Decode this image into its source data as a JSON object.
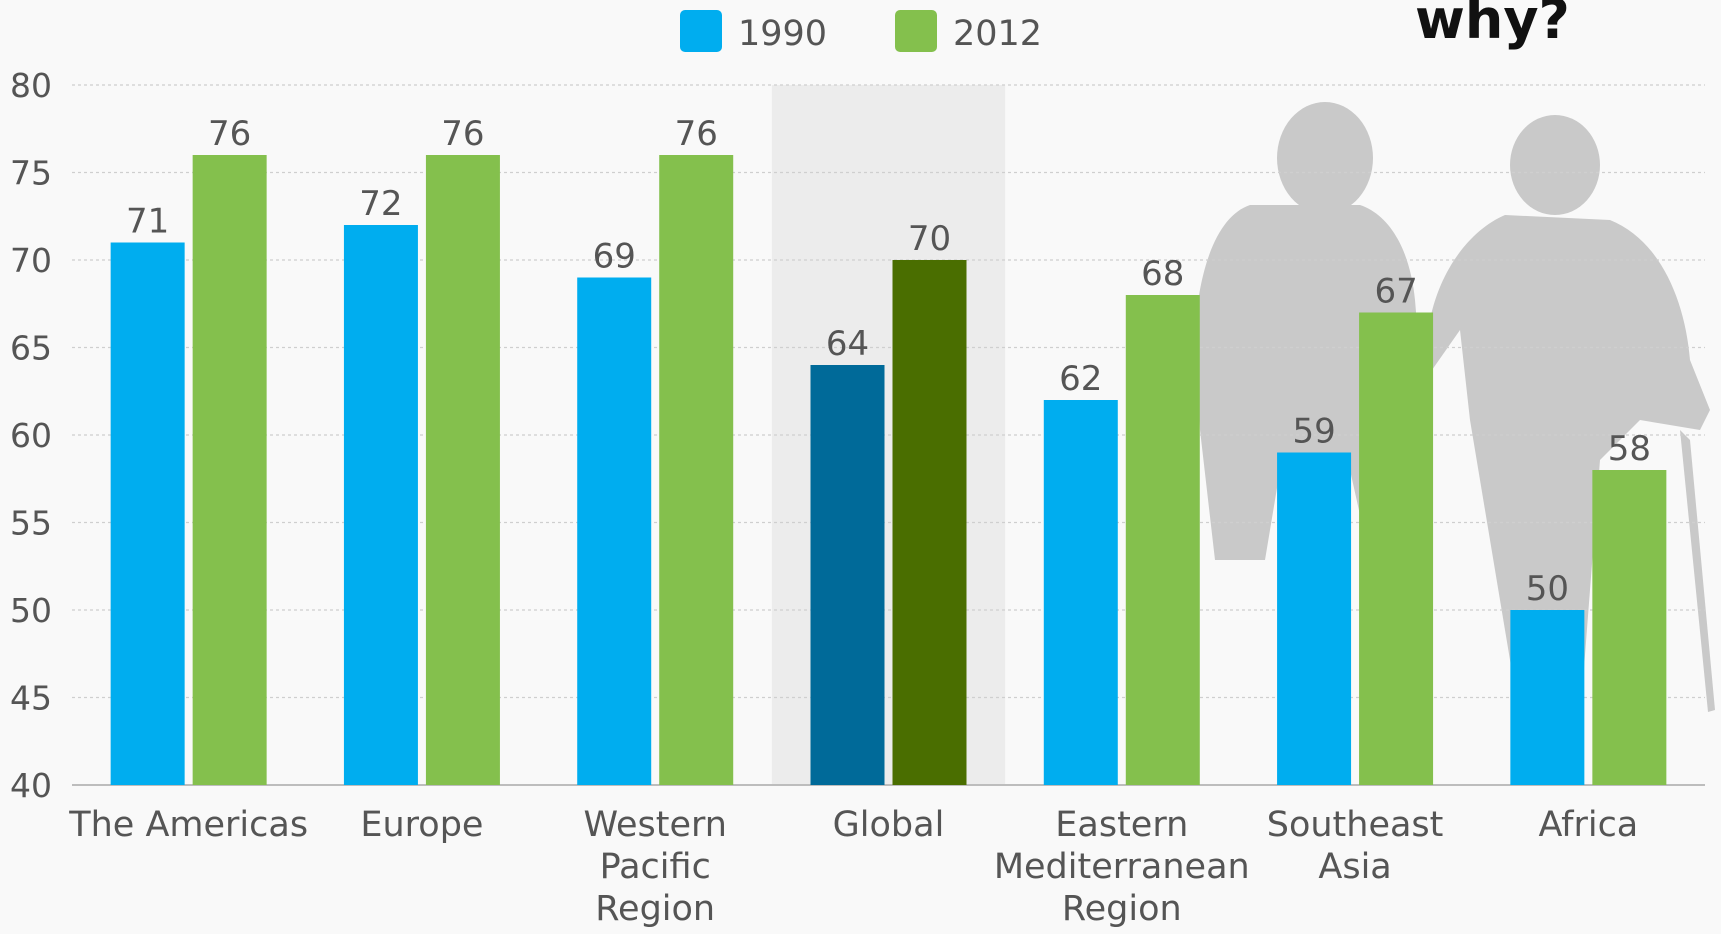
{
  "chart_data": {
    "type": "bar",
    "categories": [
      [
        "The Americas"
      ],
      [
        "Europe"
      ],
      [
        "Western",
        "Pacific",
        "Region"
      ],
      [
        "Global"
      ],
      [
        "Eastern",
        "Mediterranean",
        "Region"
      ],
      [
        "Southeast",
        "Asia"
      ],
      [
        "Africa"
      ]
    ],
    "series": [
      {
        "name": "1990",
        "color": "#00adef",
        "values": [
          71,
          72,
          69,
          64,
          62,
          59,
          50
        ]
      },
      {
        "name": "2012",
        "color": "#84c04d",
        "values": [
          76,
          76,
          76,
          70,
          68,
          67,
          58
        ]
      }
    ],
    "highlight": {
      "category_index": 3,
      "colors": [
        "#006a99",
        "#4a6e00"
      ],
      "band_color": "#ececec"
    },
    "yticks": [
      40,
      45,
      50,
      55,
      60,
      65,
      70,
      75,
      80
    ],
    "ylim": [
      40,
      80
    ],
    "grid": true,
    "legend_position": "top-center",
    "annotation": "why?"
  }
}
